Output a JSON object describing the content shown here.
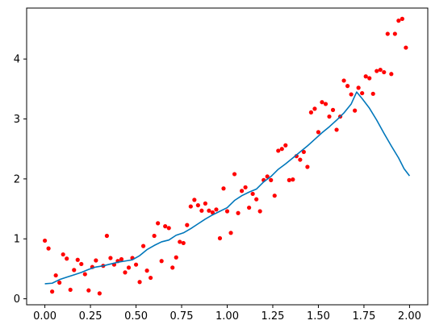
{
  "chart_data": {
    "type": "scatter",
    "title": "",
    "xlabel": "",
    "ylabel": "",
    "xlim": [
      -0.1,
      2.1
    ],
    "ylim": [
      -0.1,
      4.85
    ],
    "grid": false,
    "x_ticks": [
      0.0,
      0.25,
      0.5,
      0.75,
      1.0,
      1.25,
      1.5,
      1.75,
      2.0
    ],
    "x_tick_labels": [
      "0.00",
      "0.25",
      "0.50",
      "0.75",
      "1.00",
      "1.25",
      "1.50",
      "1.75",
      "2.00"
    ],
    "y_ticks": [
      0,
      1,
      2,
      3,
      4
    ],
    "y_tick_labels": [
      "0",
      "1",
      "2",
      "3",
      "4"
    ],
    "series": [
      {
        "type": "scatter",
        "color": "#ff0000",
        "points": [
          [
            0.0,
            0.97
          ],
          [
            0.02,
            0.84
          ],
          [
            0.04,
            0.12
          ],
          [
            0.06,
            0.39
          ],
          [
            0.08,
            0.27
          ],
          [
            0.1,
            0.74
          ],
          [
            0.12,
            0.67
          ],
          [
            0.14,
            0.15
          ],
          [
            0.16,
            0.48
          ],
          [
            0.18,
            0.65
          ],
          [
            0.2,
            0.58
          ],
          [
            0.22,
            0.41
          ],
          [
            0.24,
            0.14
          ],
          [
            0.26,
            0.53
          ],
          [
            0.28,
            0.64
          ],
          [
            0.3,
            0.09
          ],
          [
            0.32,
            0.55
          ],
          [
            0.34,
            1.05
          ],
          [
            0.36,
            0.68
          ],
          [
            0.38,
            0.57
          ],
          [
            0.4,
            0.63
          ],
          [
            0.42,
            0.66
          ],
          [
            0.44,
            0.44
          ],
          [
            0.46,
            0.52
          ],
          [
            0.48,
            0.68
          ],
          [
            0.5,
            0.57
          ],
          [
            0.52,
            0.28
          ],
          [
            0.54,
            0.88
          ],
          [
            0.56,
            0.47
          ],
          [
            0.58,
            0.35
          ],
          [
            0.6,
            1.05
          ],
          [
            0.62,
            1.26
          ],
          [
            0.64,
            0.63
          ],
          [
            0.66,
            1.21
          ],
          [
            0.68,
            1.18
          ],
          [
            0.7,
            0.52
          ],
          [
            0.72,
            0.69
          ],
          [
            0.74,
            0.95
          ],
          [
            0.76,
            0.93
          ],
          [
            0.78,
            1.23
          ],
          [
            0.8,
            1.54
          ],
          [
            0.82,
            1.65
          ],
          [
            0.84,
            1.56
          ],
          [
            0.86,
            1.47
          ],
          [
            0.88,
            1.59
          ],
          [
            0.9,
            1.47
          ],
          [
            0.92,
            1.44
          ],
          [
            0.94,
            1.49
          ],
          [
            0.96,
            1.01
          ],
          [
            0.98,
            1.84
          ],
          [
            1.0,
            1.46
          ],
          [
            1.02,
            1.1
          ],
          [
            1.04,
            2.08
          ],
          [
            1.06,
            1.43
          ],
          [
            1.08,
            1.8
          ],
          [
            1.1,
            1.86
          ],
          [
            1.12,
            1.52
          ],
          [
            1.14,
            1.75
          ],
          [
            1.16,
            1.66
          ],
          [
            1.18,
            1.46
          ],
          [
            1.2,
            1.98
          ],
          [
            1.22,
            2.04
          ],
          [
            1.24,
            1.98
          ],
          [
            1.26,
            1.72
          ],
          [
            1.28,
            2.47
          ],
          [
            1.3,
            2.5
          ],
          [
            1.32,
            2.56
          ],
          [
            1.34,
            1.98
          ],
          [
            1.36,
            1.99
          ],
          [
            1.38,
            2.38
          ],
          [
            1.4,
            2.32
          ],
          [
            1.42,
            2.45
          ],
          [
            1.44,
            2.2
          ],
          [
            1.46,
            3.11
          ],
          [
            1.48,
            3.17
          ],
          [
            1.5,
            2.78
          ],
          [
            1.52,
            3.28
          ],
          [
            1.54,
            3.25
          ],
          [
            1.56,
            3.04
          ],
          [
            1.58,
            3.15
          ],
          [
            1.6,
            2.82
          ],
          [
            1.62,
            3.04
          ],
          [
            1.64,
            3.64
          ],
          [
            1.66,
            3.55
          ],
          [
            1.68,
            3.41
          ],
          [
            1.7,
            3.14
          ],
          [
            1.72,
            3.52
          ],
          [
            1.74,
            3.43
          ],
          [
            1.76,
            3.71
          ],
          [
            1.78,
            3.68
          ],
          [
            1.8,
            3.42
          ],
          [
            1.82,
            3.8
          ],
          [
            1.84,
            3.82
          ],
          [
            1.86,
            3.78
          ],
          [
            1.88,
            4.42
          ],
          [
            1.9,
            3.75
          ],
          [
            1.92,
            4.42
          ],
          [
            1.94,
            4.64
          ],
          [
            1.96,
            4.67
          ],
          [
            1.98,
            4.19
          ]
        ]
      },
      {
        "type": "line",
        "color": "#0077bb",
        "points": [
          [
            0.0,
            0.25
          ],
          [
            0.04,
            0.26
          ],
          [
            0.08,
            0.32
          ],
          [
            0.12,
            0.36
          ],
          [
            0.16,
            0.4
          ],
          [
            0.2,
            0.44
          ],
          [
            0.24,
            0.49
          ],
          [
            0.28,
            0.53
          ],
          [
            0.32,
            0.55
          ],
          [
            0.36,
            0.58
          ],
          [
            0.4,
            0.61
          ],
          [
            0.44,
            0.63
          ],
          [
            0.48,
            0.65
          ],
          [
            0.52,
            0.72
          ],
          [
            0.56,
            0.82
          ],
          [
            0.6,
            0.89
          ],
          [
            0.64,
            0.95
          ],
          [
            0.68,
            0.98
          ],
          [
            0.72,
            1.06
          ],
          [
            0.76,
            1.1
          ],
          [
            0.8,
            1.17
          ],
          [
            0.84,
            1.25
          ],
          [
            0.88,
            1.33
          ],
          [
            0.92,
            1.4
          ],
          [
            0.96,
            1.46
          ],
          [
            1.0,
            1.52
          ],
          [
            1.04,
            1.64
          ],
          [
            1.08,
            1.72
          ],
          [
            1.12,
            1.78
          ],
          [
            1.16,
            1.83
          ],
          [
            1.2,
            1.95
          ],
          [
            1.24,
            2.04
          ],
          [
            1.28,
            2.16
          ],
          [
            1.32,
            2.25
          ],
          [
            1.36,
            2.35
          ],
          [
            1.4,
            2.45
          ],
          [
            1.44,
            2.55
          ],
          [
            1.48,
            2.66
          ],
          [
            1.52,
            2.77
          ],
          [
            1.56,
            2.87
          ],
          [
            1.6,
            2.98
          ],
          [
            1.64,
            3.1
          ],
          [
            1.68,
            3.25
          ],
          [
            1.71,
            3.45
          ],
          [
            1.74,
            3.34
          ],
          [
            1.78,
            3.18
          ],
          [
            1.82,
            2.98
          ],
          [
            1.86,
            2.76
          ],
          [
            1.9,
            2.55
          ],
          [
            1.94,
            2.35
          ],
          [
            1.97,
            2.17
          ],
          [
            2.0,
            2.05
          ]
        ]
      }
    ]
  }
}
